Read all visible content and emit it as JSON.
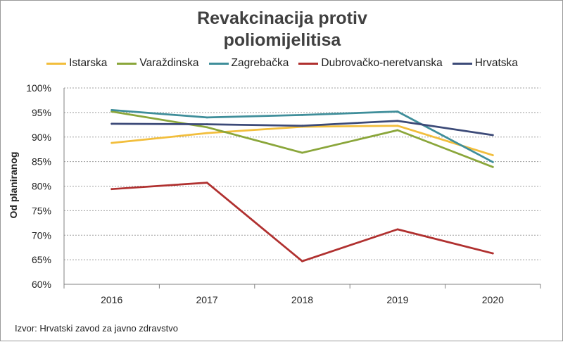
{
  "chart_data": {
    "type": "line",
    "title": "Revakcinacija protiv poliomijelitisa",
    "title_lines": [
      "Revakcinacija protiv",
      "poliomijelitisa"
    ],
    "ylabel": "Od planiranog",
    "xlabel": "",
    "categories": [
      "2016",
      "2017",
      "2018",
      "2019",
      "2020"
    ],
    "ylim": [
      60,
      100
    ],
    "yticks": [
      60,
      65,
      70,
      75,
      80,
      85,
      90,
      95,
      100
    ],
    "ytick_labels": [
      "60%",
      "65%",
      "70%",
      "75%",
      "80%",
      "85%",
      "90%",
      "95%",
      "100%"
    ],
    "grid": true,
    "legend_position": "top",
    "series": [
      {
        "name": "Istarska",
        "color": "#F2BE3C",
        "values": [
          88.8,
          90.8,
          92.1,
          92.3,
          86.3
        ]
      },
      {
        "name": "Varaždinska",
        "color": "#8AA63A",
        "values": [
          95.2,
          92.0,
          86.8,
          91.4,
          83.9
        ]
      },
      {
        "name": "Zagrebačka",
        "color": "#3F8E9A",
        "values": [
          95.5,
          94.0,
          94.5,
          95.2,
          84.9
        ]
      },
      {
        "name": "Dubrovačko-neretvanska",
        "color": "#B0302F",
        "values": [
          79.4,
          80.7,
          64.7,
          71.2,
          66.3
        ]
      },
      {
        "name": "Hrvatska",
        "color": "#3C4A78",
        "values": [
          92.7,
          92.6,
          92.3,
          93.3,
          90.4
        ]
      }
    ],
    "source": "Izvor: Hrvatski zavod za javno zdravstvo"
  }
}
